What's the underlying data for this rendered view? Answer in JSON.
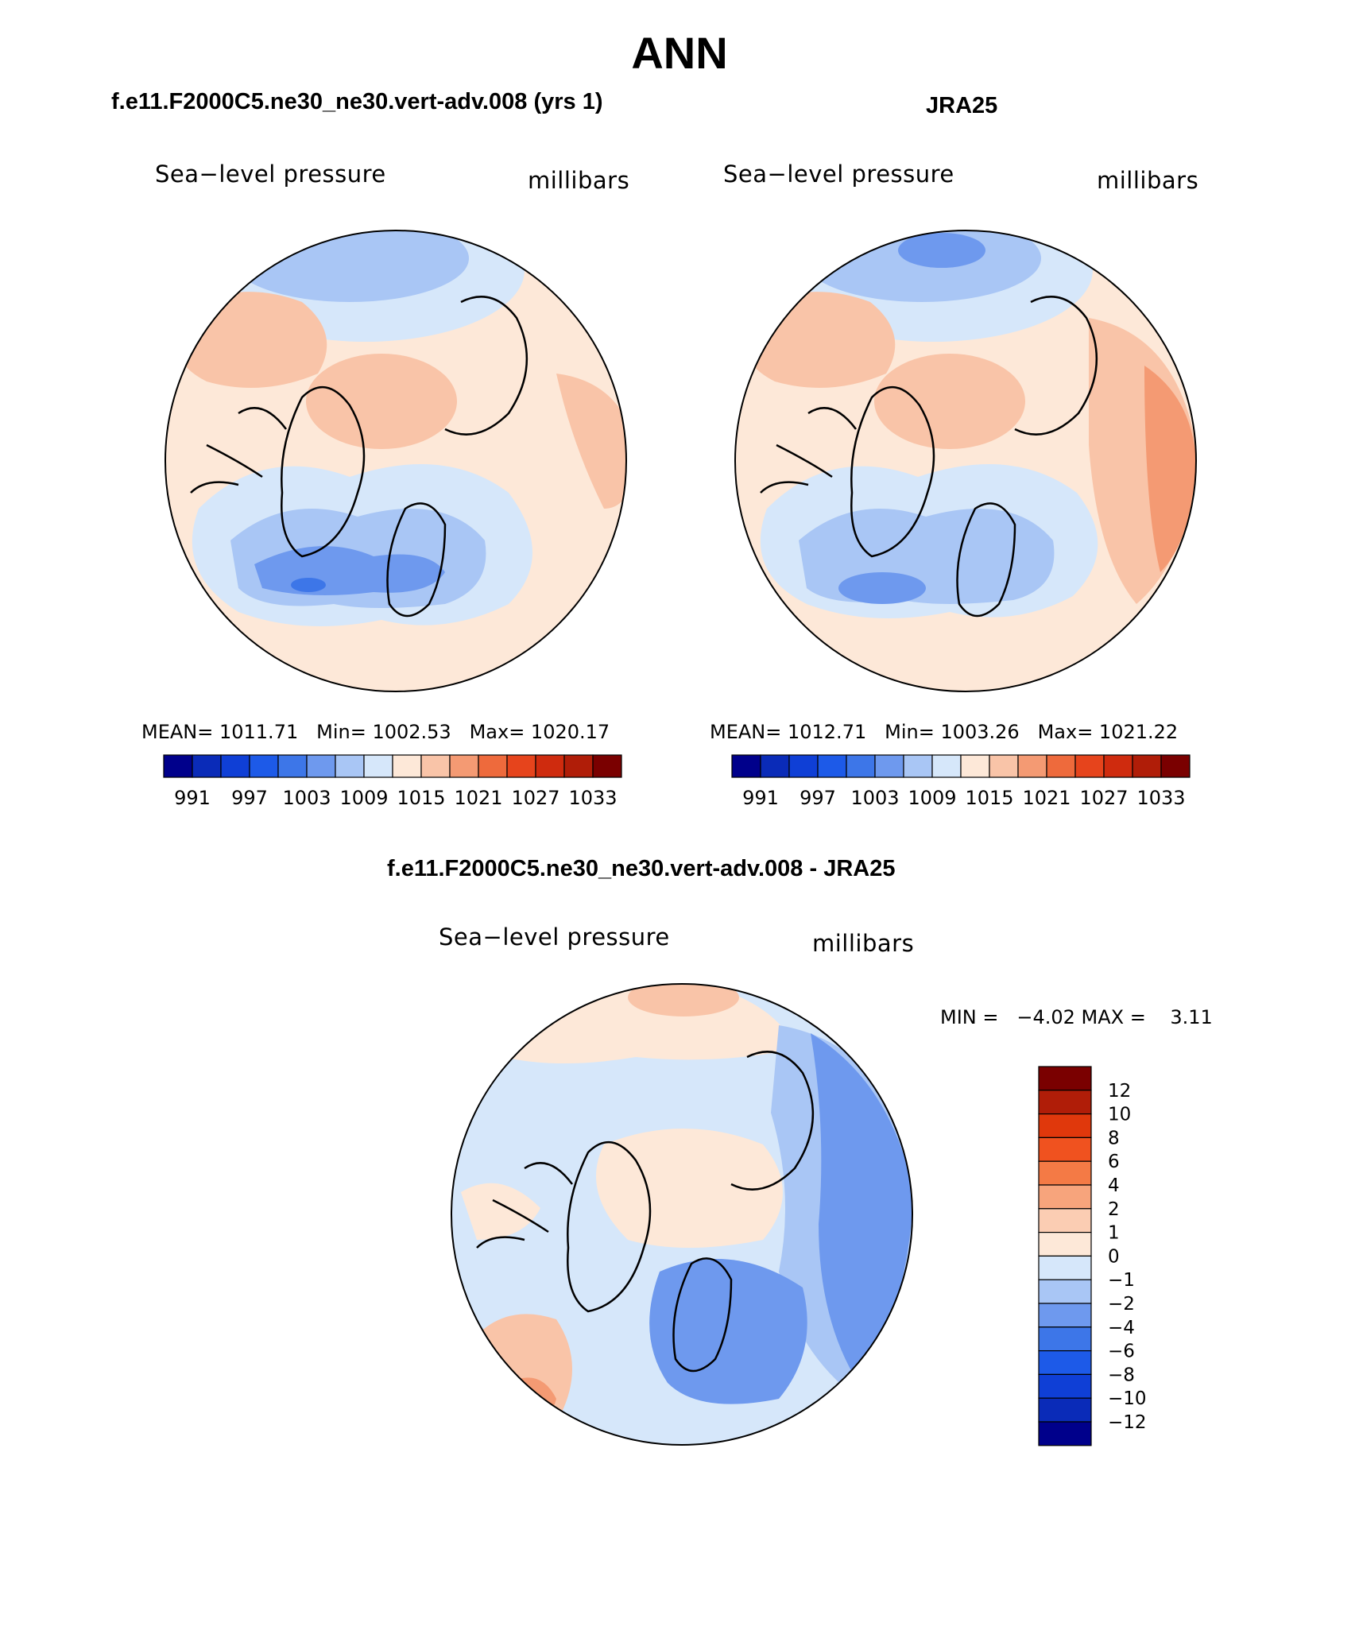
{
  "figure": {
    "title": "ANN",
    "left_title": "f.e11.F2000C5.ne30_ne30.vert-adv.008 (yrs 1)",
    "right_title": "JRA25",
    "diff_title": "f.e11.F2000C5.ne30_ne30.vert-adv.008 - JRA25"
  },
  "panels": {
    "model": {
      "variable": "Sea−level pressure",
      "units": "millibars",
      "stats": "MEAN= 1011.71   Min= 1002.53   Max= 1020.17"
    },
    "obs": {
      "variable": "Sea−level pressure",
      "units": "millibars",
      "stats": "MEAN= 1012.71   Min= 1003.26   Max= 1021.22"
    },
    "diff": {
      "variable": "Sea−level pressure",
      "units": "millibars",
      "stats": "MIN =   −4.02 MAX =    3.11"
    }
  },
  "colorbar_abs": {
    "labels": [
      "991",
      "997",
      "1003",
      "1009",
      "1015",
      "1021",
      "1027",
      "1033"
    ],
    "colors": [
      "#00008b",
      "#0a2bb8",
      "#0f3fd6",
      "#1d5ae8",
      "#3d76e8",
      "#6e99ee",
      "#a9c6f5",
      "#d6e7fa",
      "#fde8d8",
      "#f9c4a8",
      "#f49a73",
      "#ee6a3c",
      "#e6441c",
      "#cf2b0e",
      "#b01d08",
      "#7a0000"
    ]
  },
  "colorbar_diff": {
    "labels": [
      "12",
      "10",
      "8",
      "6",
      "4",
      "2",
      "1",
      "0",
      "−1",
      "−2",
      "−4",
      "−6",
      "−8",
      "−10",
      "−12"
    ],
    "colors": [
      "#7a0000",
      "#b01d08",
      "#e0380c",
      "#f0521f",
      "#f47a45",
      "#f7a47c",
      "#fbcdb3",
      "#fde8d8",
      "#d6e7fa",
      "#a9c6f5",
      "#6e99ee",
      "#3d76e8",
      "#1d5ae8",
      "#0f3fd6",
      "#0a2bb8",
      "#00008b"
    ]
  }
}
